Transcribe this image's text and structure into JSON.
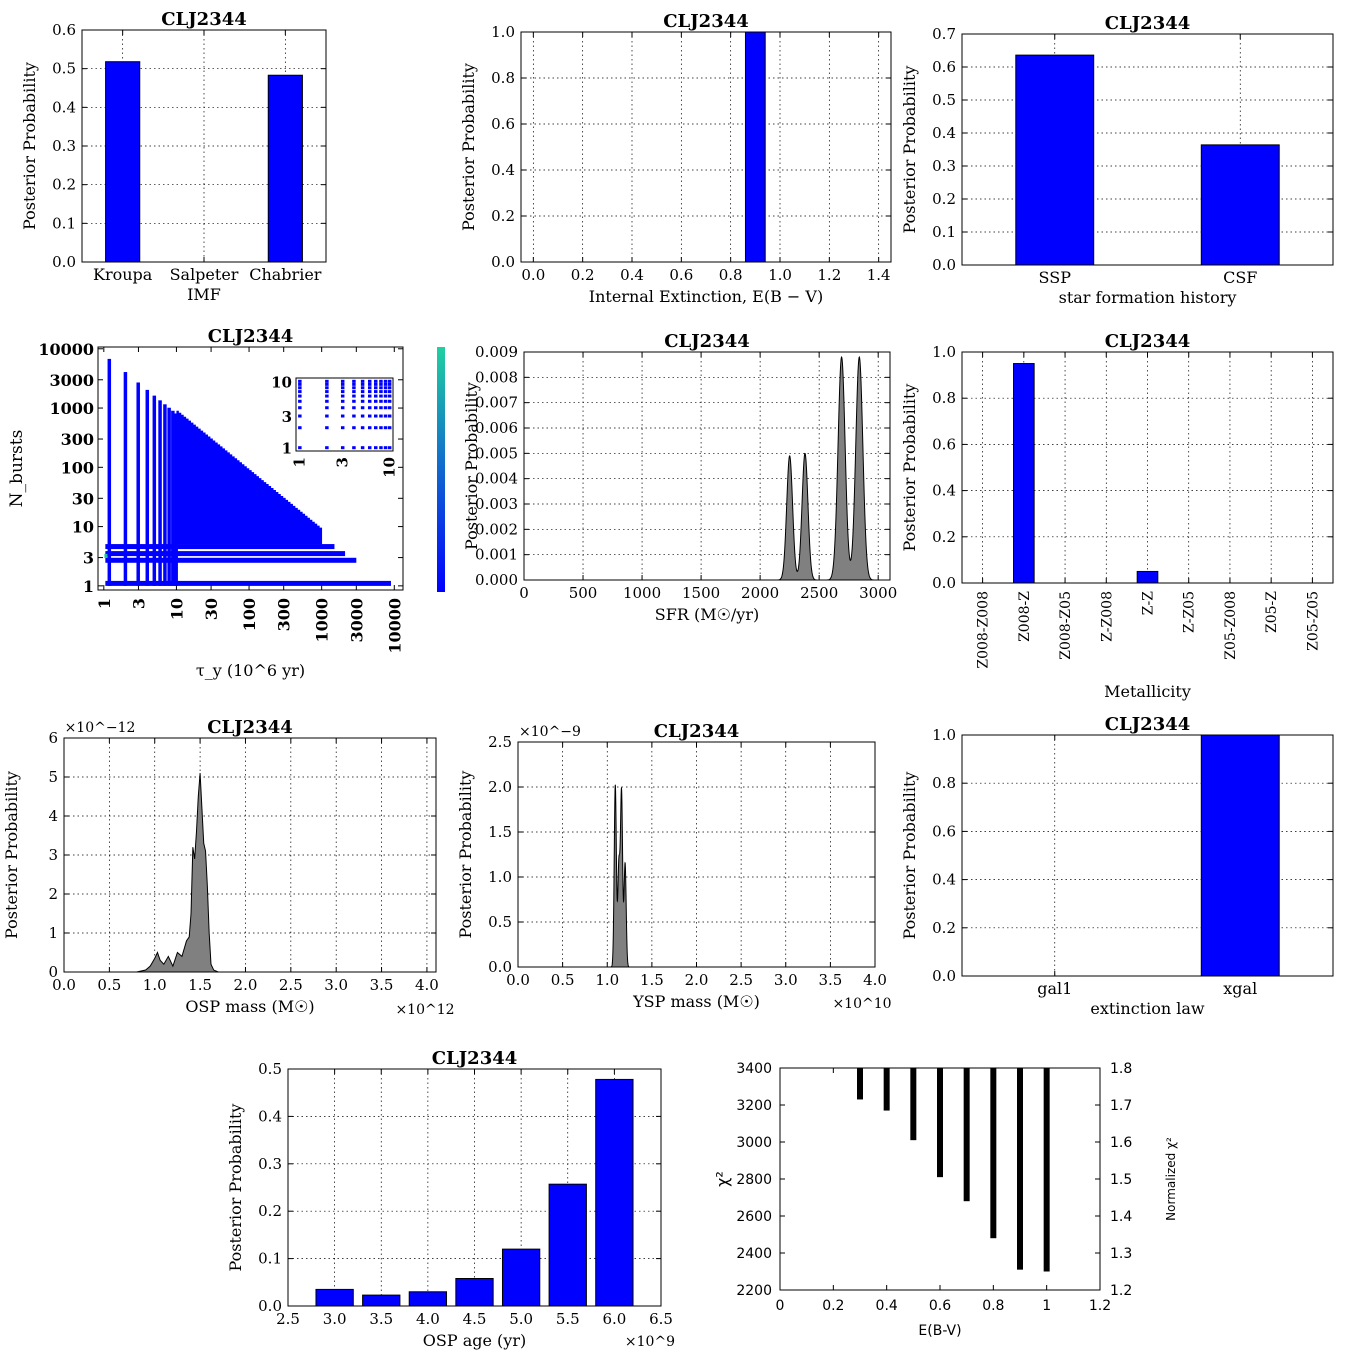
{
  "figure": {
    "panels": [
      {
        "id": "imf",
        "type": "bar",
        "title": "CLJ2344",
        "xlabel": "IMF",
        "ylabel": "Posterior Probability",
        "categories": [
          "Kroupa",
          "Salpeter",
          "Chabrier"
        ],
        "values": [
          0.518,
          0.0,
          0.483
        ],
        "ylim": [
          0,
          0.6
        ],
        "yticks": [
          "0.0",
          "0.1",
          "0.2",
          "0.3",
          "0.4",
          "0.5",
          "0.6"
        ],
        "bar_color": "#0000ff"
      },
      {
        "id": "ext",
        "type": "bar",
        "title": "CLJ2344",
        "xlabel": "Internal Extinction, E(B − V)",
        "ylabel": "Posterior Probability",
        "x": [
          0.0,
          0.1,
          0.2,
          0.3,
          0.4,
          0.5,
          0.6,
          0.7,
          0.8,
          0.9,
          1.0,
          1.1,
          1.2,
          1.3,
          1.4
        ],
        "values": [
          0,
          0,
          0,
          0,
          0,
          0,
          0,
          0,
          0,
          1.0,
          0,
          0,
          0,
          0,
          0
        ],
        "xlim": [
          -0.05,
          1.45
        ],
        "ylim": [
          0,
          1.0
        ],
        "xticks": [
          "0.0",
          "0.2",
          "0.4",
          "0.6",
          "0.8",
          "1.0",
          "1.2",
          "1.4"
        ],
        "yticks": [
          "0.0",
          "0.2",
          "0.4",
          "0.6",
          "0.8",
          "1.0"
        ],
        "bar_color": "#0000ff"
      },
      {
        "id": "sfh",
        "type": "bar",
        "title": "CLJ2344",
        "xlabel": "star formation history",
        "ylabel": "Posterior Probability",
        "categories": [
          "SSP",
          "CSF"
        ],
        "values": [
          0.636,
          0.364
        ],
        "ylim": [
          0,
          0.7
        ],
        "yticks": [
          "0.0",
          "0.1",
          "0.2",
          "0.3",
          "0.4",
          "0.5",
          "0.6",
          "0.7"
        ],
        "bar_color": "#0000ff"
      },
      {
        "id": "tau",
        "type": "heatmap",
        "title": "CLJ2344",
        "xlabel": "τ_y (10^6 yr)",
        "ylabel": "N_bursts",
        "xticks": [
          "1",
          "3",
          "10",
          "30",
          "100",
          "300",
          "1000",
          "3000",
          "10000"
        ],
        "yticks": [
          "1",
          "3",
          "10",
          "30",
          "100",
          "300",
          "1000",
          "3000",
          "10000"
        ],
        "inset_xticks": [
          "1",
          "3",
          "10"
        ],
        "inset_yticks": [
          "1",
          "3",
          "10"
        ],
        "cell_color": "#0000ff",
        "highlight_color": "#20c0a0"
      },
      {
        "id": "sfr",
        "type": "area",
        "title": "CLJ2344",
        "xlabel": "SFR (M☉/yr)",
        "ylabel": "Posterior Probability",
        "xlim": [
          0,
          3100
        ],
        "ylim": [
          0,
          0.009
        ],
        "xticks": [
          "0",
          "500",
          "1000",
          "1500",
          "2000",
          "2500",
          "3000"
        ],
        "yticks": [
          "0.000",
          "0.001",
          "0.002",
          "0.003",
          "0.004",
          "0.005",
          "0.006",
          "0.007",
          "0.008",
          "0.009"
        ],
        "peaks": [
          {
            "center": 2250,
            "height": 0.0049,
            "width": 25
          },
          {
            "center": 2380,
            "height": 0.005,
            "width": 25
          },
          {
            "center": 2690,
            "height": 0.0088,
            "width": 30
          },
          {
            "center": 2840,
            "height": 0.0088,
            "width": 30
          }
        ]
      },
      {
        "id": "met",
        "type": "bar",
        "title": "CLJ2344",
        "xlabel": "Metallicity",
        "ylabel": "Posterior Probability",
        "categories": [
          "Z008-Z008",
          "Z008-Z",
          "Z008-Z05",
          "Z-Z008",
          "Z-Z",
          "Z-Z05",
          "Z05-Z008",
          "Z05-Z",
          "Z05-Z05"
        ],
        "values": [
          0,
          0.95,
          0,
          0,
          0.05,
          0,
          0,
          0,
          0
        ],
        "ylim": [
          0,
          1.0
        ],
        "yticks": [
          "0.0",
          "0.2",
          "0.4",
          "0.6",
          "0.8",
          "1.0"
        ],
        "bar_color": "#0000ff"
      },
      {
        "id": "osp",
        "type": "area",
        "title": "CLJ2344",
        "xlabel": "OSP mass (M☉)",
        "ylabel": "Posterior Probability",
        "xlim": [
          0,
          4.1
        ],
        "ylim": [
          0,
          6
        ],
        "xexp": "×10^12",
        "yexp": "×10^−12",
        "xticks": [
          "0.0",
          "0.5",
          "1.0",
          "1.5",
          "2.0",
          "2.5",
          "3.0",
          "3.5",
          "4.0"
        ],
        "yticks": [
          "0",
          "1",
          "2",
          "3",
          "4",
          "5",
          "6"
        ],
        "curve_x": [
          0.8,
          0.9,
          0.95,
          1.0,
          1.03,
          1.06,
          1.1,
          1.15,
          1.2,
          1.25,
          1.3,
          1.35,
          1.38,
          1.4,
          1.42,
          1.44,
          1.46,
          1.48,
          1.5,
          1.52,
          1.54,
          1.56,
          1.58,
          1.6,
          1.62,
          1.65,
          1.7
        ],
        "curve_y": [
          0,
          0.05,
          0.15,
          0.35,
          0.5,
          0.3,
          0.2,
          0.4,
          0.15,
          0.5,
          0.4,
          0.8,
          0.9,
          1.5,
          3.2,
          2.9,
          3.6,
          4.5,
          5.1,
          4.2,
          3.3,
          3.1,
          2.2,
          1.0,
          0.2,
          0.05,
          0
        ]
      },
      {
        "id": "ysp",
        "type": "area",
        "title": "CLJ2344",
        "xlabel": "YSP mass (M☉)",
        "ylabel": "Posterior Probability",
        "xlim": [
          0,
          4.0
        ],
        "ylim": [
          0,
          2.5
        ],
        "xexp": "×10^10",
        "yexp": "×10^−9",
        "xticks": [
          "0.0",
          "0.5",
          "1.0",
          "1.5",
          "2.0",
          "2.5",
          "3.0",
          "3.5",
          "4.0"
        ],
        "yticks": [
          "0.0",
          "0.5",
          "1.0",
          "1.5",
          "2.0",
          "2.5"
        ],
        "peaks": [
          {
            "center": 1.09,
            "height": 2.02,
            "width": 0.012
          },
          {
            "center": 1.13,
            "height": 1.12,
            "width": 0.012
          },
          {
            "center": 1.16,
            "height": 1.93,
            "width": 0.012
          },
          {
            "center": 1.2,
            "height": 1.15,
            "width": 0.012
          }
        ]
      },
      {
        "id": "law",
        "type": "bar",
        "title": "CLJ2344",
        "xlabel": "extinction law",
        "ylabel": "Posterior Probability",
        "categories": [
          "gal1",
          "xgal"
        ],
        "values": [
          0.0,
          1.0
        ],
        "ylim": [
          0,
          1.0
        ],
        "yticks": [
          "0.0",
          "0.2",
          "0.4",
          "0.6",
          "0.8",
          "1.0"
        ],
        "bar_color": "#0000ff"
      },
      {
        "id": "age",
        "type": "bar",
        "title": "CLJ2344",
        "xlabel": "OSP age (yr)",
        "ylabel": "Posterior Probability",
        "x": [
          3.0,
          3.5,
          4.0,
          4.5,
          5.0,
          5.5,
          6.0
        ],
        "values": [
          0.035,
          0.023,
          0.03,
          0.058,
          0.12,
          0.257,
          0.478
        ],
        "xlim": [
          2.5,
          6.5
        ],
        "ylim": [
          0,
          0.5
        ],
        "xexp": "×10^9",
        "xticks": [
          "2.5",
          "3.0",
          "3.5",
          "4.0",
          "4.5",
          "5.0",
          "5.5",
          "6.0",
          "6.5"
        ],
        "yticks": [
          "0.0",
          "0.1",
          "0.2",
          "0.3",
          "0.4",
          "0.5"
        ],
        "bar_color": "#0000ff"
      },
      {
        "id": "chi",
        "type": "scatter",
        "title": "",
        "xlabel": "E(B-V)",
        "ylabel": "χ²",
        "y2label": "Normalized χ²",
        "xlim": [
          0,
          1.2
        ],
        "ylim": [
          2200,
          3400
        ],
        "y2lim": [
          1.2,
          1.8
        ],
        "xticks": [
          "0",
          "0.2",
          "0.4",
          "0.6",
          "0.8",
          "1",
          "1.2"
        ],
        "yticks": [
          "2200",
          "2400",
          "2600",
          "2800",
          "3000",
          "3200",
          "3400"
        ],
        "y2ticks": [
          "1.2",
          "1.3",
          "1.4",
          "1.5",
          "1.6",
          "1.7",
          "1.8"
        ],
        "columns": [
          {
            "x": 0.3,
            "ymin": 3230
          },
          {
            "x": 0.4,
            "ymin": 3170
          },
          {
            "x": 0.5,
            "ymin": 3010
          },
          {
            "x": 0.6,
            "ymin": 2810
          },
          {
            "x": 0.7,
            "ymin": 2680
          },
          {
            "x": 0.8,
            "ymin": 2480
          },
          {
            "x": 0.9,
            "ymin": 2310
          },
          {
            "x": 1.0,
            "ymin": 2300
          }
        ]
      }
    ]
  }
}
